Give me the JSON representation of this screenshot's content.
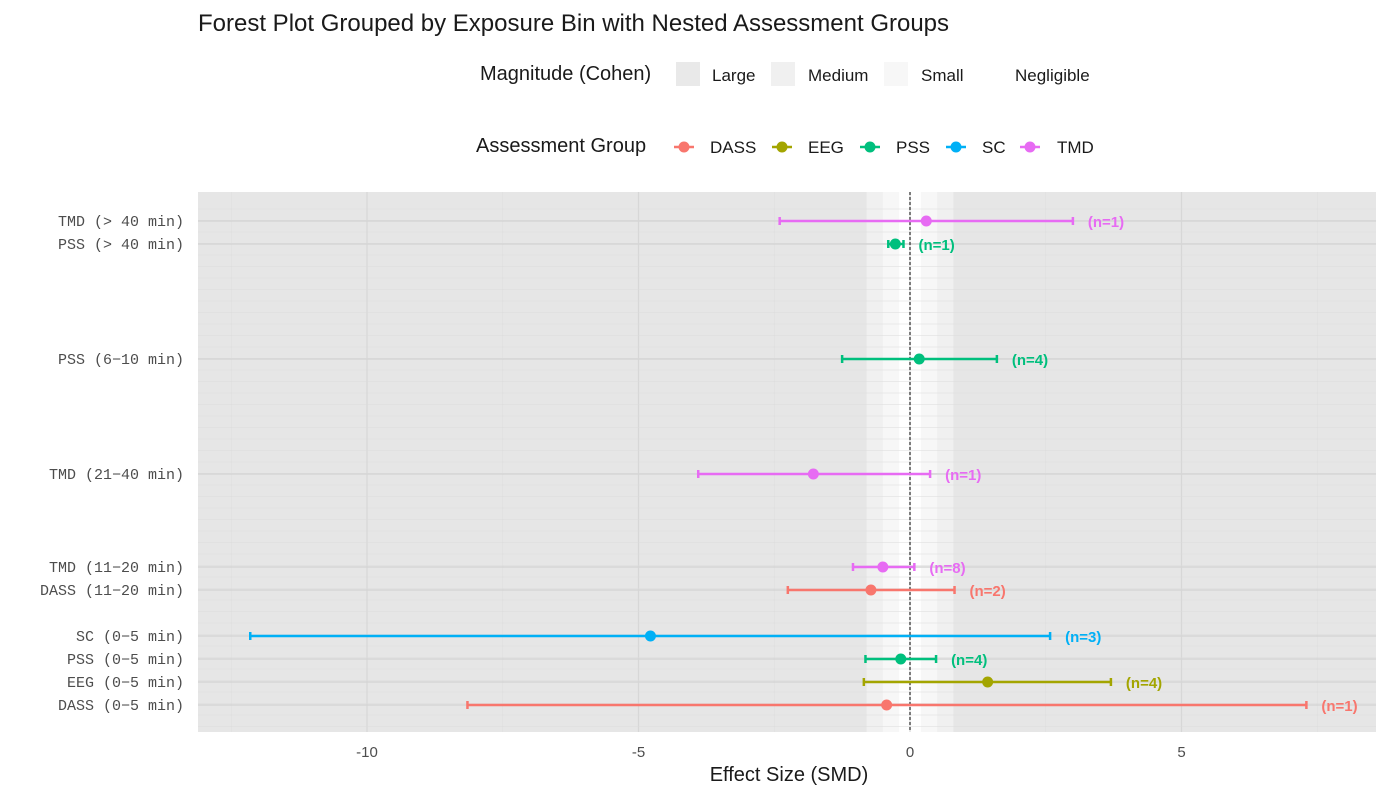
{
  "chart_data": {
    "type": "forest",
    "title": "Forest Plot Grouped by Exposure Bin with Nested Assessment Groups",
    "xlabel": "Effect Size (SMD)",
    "xlim": [
      -12.8,
      8.5
    ],
    "xticks": [
      -10,
      -5,
      0,
      5
    ],
    "reference_line": 0,
    "magnitude_legend": {
      "title": "Magnitude (Cohen)",
      "bands": [
        {
          "name": "Large",
          "color": "#e9e9e9"
        },
        {
          "name": "Medium",
          "color": "#f0f0f0"
        },
        {
          "name": "Small",
          "color": "#f7f7f7"
        },
        {
          "name": "Negligible",
          "color": "#ffffff"
        }
      ]
    },
    "group_legend": {
      "title": "Assessment Group",
      "groups": [
        {
          "name": "DASS",
          "color": "#f8766d"
        },
        {
          "name": "EEG",
          "color": "#a3a500"
        },
        {
          "name": "PSS",
          "color": "#00bf7d"
        },
        {
          "name": "SC",
          "color": "#00b0f6"
        },
        {
          "name": "TMD",
          "color": "#e76bf3"
        }
      ]
    },
    "rows": [
      {
        "label": "TMD (> 40 min)",
        "group": "TMD",
        "estimate": 0.3,
        "lower": -2.4,
        "upper": 3.0,
        "n_label": "(n=1)"
      },
      {
        "label": "PSS (> 40 min)",
        "group": "PSS",
        "estimate": -0.27,
        "lower": -0.4,
        "upper": -0.12,
        "n_label": "(n=1)"
      },
      {
        "label": "PSS (6−10 min)",
        "group": "PSS",
        "estimate": 0.17,
        "lower": -1.25,
        "upper": 1.6,
        "n_label": "(n=4)"
      },
      {
        "label": "TMD (21−40 min)",
        "group": "TMD",
        "estimate": -1.78,
        "lower": -3.9,
        "upper": 0.37,
        "n_label": "(n=1)"
      },
      {
        "label": "TMD (11−20 min)",
        "group": "TMD",
        "estimate": -0.5,
        "lower": -1.05,
        "upper": 0.08,
        "n_label": "(n=8)"
      },
      {
        "label": "DASS (11−20 min)",
        "group": "DASS",
        "estimate": -0.72,
        "lower": -2.25,
        "upper": 0.82,
        "n_label": "(n=2)"
      },
      {
        "label": "SC (0−5 min)",
        "group": "SC",
        "estimate": -4.78,
        "lower": -12.15,
        "upper": 2.58,
        "n_label": "(n=3)"
      },
      {
        "label": "PSS (0−5 min)",
        "group": "PSS",
        "estimate": -0.17,
        "lower": -0.82,
        "upper": 0.48,
        "n_label": "(n=4)"
      },
      {
        "label": "EEG (0−5 min)",
        "group": "EEG",
        "estimate": 1.43,
        "lower": -0.85,
        "upper": 3.7,
        "n_label": "(n=4)"
      },
      {
        "label": "DASS (0−5 min)",
        "group": "DASS",
        "estimate": -0.43,
        "lower": -8.15,
        "upper": 7.3,
        "n_label": "(n=1)"
      }
    ]
  }
}
